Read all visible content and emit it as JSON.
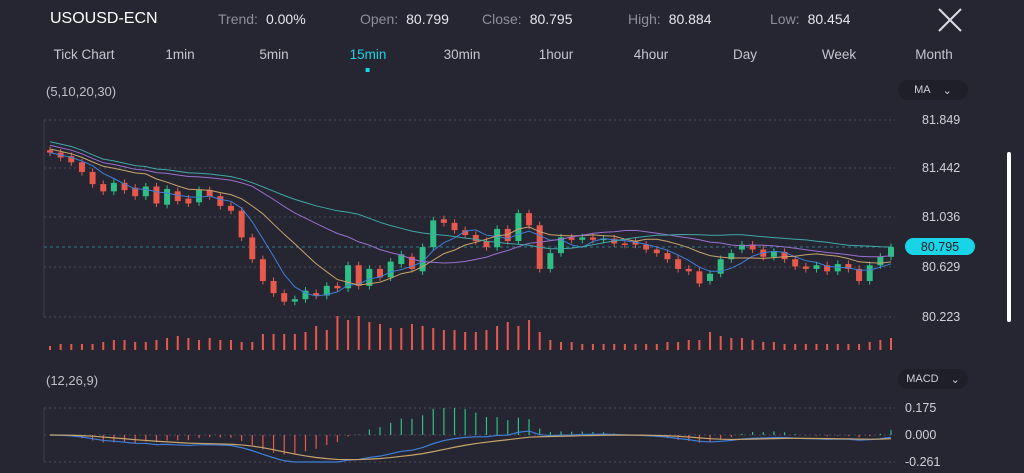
{
  "header": {
    "symbol": "USOUSD-ECN",
    "stats": [
      {
        "label": "Trend:",
        "value": "0.00%"
      },
      {
        "label": "Open:",
        "value": "80.799"
      },
      {
        "label": "Close:",
        "value": "80.795"
      },
      {
        "label": "High:",
        "value": "80.884"
      },
      {
        "label": "Low:",
        "value": "80.454"
      }
    ],
    "close_icon": "close-x-icon"
  },
  "tabs": [
    {
      "label": "Tick Chart",
      "active": false
    },
    {
      "label": "1min",
      "active": false
    },
    {
      "label": "5min",
      "active": false
    },
    {
      "label": "15min",
      "active": true
    },
    {
      "label": "30min",
      "active": false
    },
    {
      "label": "1hour",
      "active": false
    },
    {
      "label": "4hour",
      "active": false
    },
    {
      "label": "Day",
      "active": false
    },
    {
      "label": "Week",
      "active": false
    },
    {
      "label": "Month",
      "active": false
    }
  ],
  "main_chart": {
    "params": "(5,10,20,30)",
    "indicator": "MA",
    "price_ticks": [
      "81.849",
      "81.442",
      "81.036",
      "80.629",
      "80.223"
    ],
    "current_price": "80.795",
    "colors": {
      "up": "#2fbf86",
      "down": "#e8594d",
      "ma5": "#3f7fd9",
      "ma10": "#c9a46b",
      "ma20": "#9b6fd0",
      "ma30": "#3fa8a8",
      "accent": "#19d3e6"
    }
  },
  "chart_data": {
    "type": "candlestick",
    "ylim": [
      80.223,
      81.849
    ],
    "ma_periods": [
      5,
      10,
      20,
      30
    ],
    "candles": [
      [
        81.6,
        81.58
      ],
      [
        81.58,
        81.54
      ],
      [
        81.55,
        81.5
      ],
      [
        81.5,
        81.42
      ],
      [
        81.42,
        81.32
      ],
      [
        81.32,
        81.26
      ],
      [
        81.26,
        81.33
      ],
      [
        81.33,
        81.27
      ],
      [
        81.29,
        81.22
      ],
      [
        81.22,
        81.3
      ],
      [
        81.3,
        81.16
      ],
      [
        81.15,
        81.28
      ],
      [
        81.26,
        81.18
      ],
      [
        81.2,
        81.16
      ],
      [
        81.17,
        81.27
      ],
      [
        81.27,
        81.22
      ],
      [
        81.22,
        81.14
      ],
      [
        81.14,
        81.1
      ],
      [
        81.1,
        80.88
      ],
      [
        80.88,
        80.7
      ],
      [
        80.7,
        80.52
      ],
      [
        80.52,
        80.42
      ],
      [
        80.42,
        80.35
      ],
      [
        80.35,
        80.37
      ],
      [
        80.37,
        80.44
      ],
      [
        80.42,
        80.4
      ],
      [
        80.4,
        80.48
      ],
      [
        80.48,
        80.46
      ],
      [
        80.46,
        80.65
      ],
      [
        80.65,
        80.48
      ],
      [
        80.48,
        80.62
      ],
      [
        80.62,
        80.55
      ],
      [
        80.55,
        80.68
      ],
      [
        80.66,
        80.74
      ],
      [
        80.72,
        80.62
      ],
      [
        80.6,
        80.8
      ],
      [
        80.8,
        81.02
      ],
      [
        81.03,
        81.0
      ],
      [
        81.0,
        80.94
      ],
      [
        80.94,
        80.9
      ],
      [
        80.9,
        80.85
      ],
      [
        80.85,
        80.8
      ],
      [
        80.8,
        80.95
      ],
      [
        80.95,
        80.85
      ],
      [
        80.85,
        81.08
      ],
      [
        81.08,
        80.98
      ],
      [
        80.98,
        80.62
      ],
      [
        80.62,
        80.75
      ],
      [
        80.75,
        80.88
      ],
      [
        80.88,
        80.86
      ],
      [
        80.86,
        80.88
      ],
      [
        80.88,
        80.86
      ],
      [
        80.86,
        80.87
      ],
      [
        80.87,
        80.83
      ],
      [
        80.83,
        80.82
      ],
      [
        80.85,
        80.82
      ],
      [
        80.82,
        80.78
      ],
      [
        80.78,
        80.75
      ],
      [
        80.75,
        80.7
      ],
      [
        80.7,
        80.62
      ],
      [
        80.62,
        80.6
      ],
      [
        80.6,
        80.5
      ],
      [
        80.52,
        80.58
      ],
      [
        80.58,
        80.7
      ],
      [
        80.7,
        80.75
      ],
      [
        80.78,
        80.82
      ],
      [
        80.82,
        80.78
      ],
      [
        80.78,
        80.72
      ],
      [
        80.72,
        80.76
      ],
      [
        80.76,
        80.7
      ],
      [
        80.7,
        80.64
      ],
      [
        80.64,
        80.62
      ],
      [
        80.62,
        80.65
      ],
      [
        80.65,
        80.6
      ],
      [
        80.6,
        80.66
      ],
      [
        80.66,
        80.62
      ],
      [
        80.62,
        80.52
      ],
      [
        80.52,
        80.65
      ],
      [
        80.65,
        80.72
      ],
      [
        80.72,
        80.8
      ]
    ],
    "volume": [
      2,
      3,
      3,
      3,
      3,
      4,
      5,
      5,
      4,
      4,
      5,
      6,
      7,
      6,
      5,
      6,
      5,
      5,
      4,
      4,
      8,
      8,
      8,
      8,
      9,
      12,
      10,
      17,
      15,
      17,
      14,
      13,
      11,
      11,
      13,
      12,
      11,
      10,
      10,
      9,
      9,
      10,
      12,
      14,
      12,
      15,
      9,
      5,
      4,
      4,
      3,
      3,
      3,
      3,
      3,
      3,
      3,
      3,
      4,
      4,
      5,
      5,
      9,
      7,
      6,
      6,
      5,
      4,
      4,
      3,
      3,
      3,
      3,
      3,
      3,
      3,
      3,
      4,
      5,
      6
    ],
    "macd": {
      "params": "(12,26,9)",
      "ticks": [
        "0.175",
        "0.000",
        "-0.261"
      ],
      "ylim": [
        -0.261,
        0.175
      ],
      "indicator": "MACD"
    }
  }
}
